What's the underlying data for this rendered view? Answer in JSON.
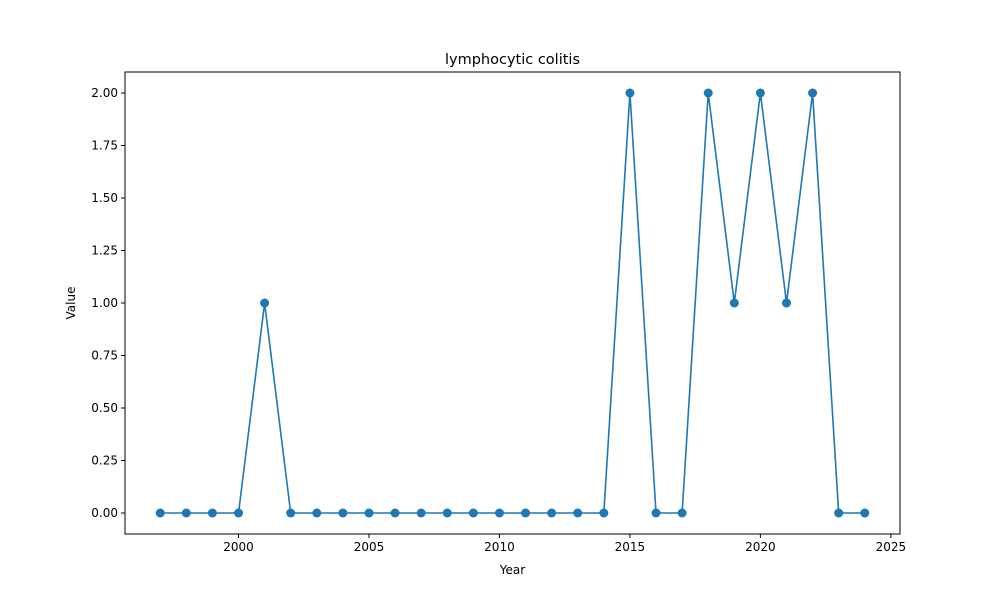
{
  "chart_data": {
    "type": "line",
    "title": "lymphocytic colitis",
    "xlabel": "Year",
    "ylabel": "Value",
    "xlim": [
      1995.65,
      2025.35
    ],
    "ylim": [
      -0.1,
      2.1
    ],
    "x_ticks": [
      2000,
      2005,
      2010,
      2015,
      2020,
      2025
    ],
    "y_ticks": [
      0.0,
      0.25,
      0.5,
      0.75,
      1.0,
      1.25,
      1.5,
      1.75,
      2.0
    ],
    "grid": false,
    "markers": true,
    "series": [
      {
        "color": "#1f77b4",
        "x": [
          1997,
          1998,
          1999,
          2000,
          2001,
          2002,
          2003,
          2004,
          2005,
          2006,
          2007,
          2008,
          2009,
          2010,
          2011,
          2012,
          2013,
          2014,
          2015,
          2016,
          2017,
          2018,
          2019,
          2020,
          2021,
          2022,
          2023,
          2024
        ],
        "y": [
          0,
          0,
          0,
          0,
          1,
          0,
          0,
          0,
          0,
          0,
          0,
          0,
          0,
          0,
          0,
          0,
          0,
          0,
          2,
          0,
          0,
          2,
          1,
          2,
          1,
          2,
          0,
          0
        ]
      }
    ]
  }
}
